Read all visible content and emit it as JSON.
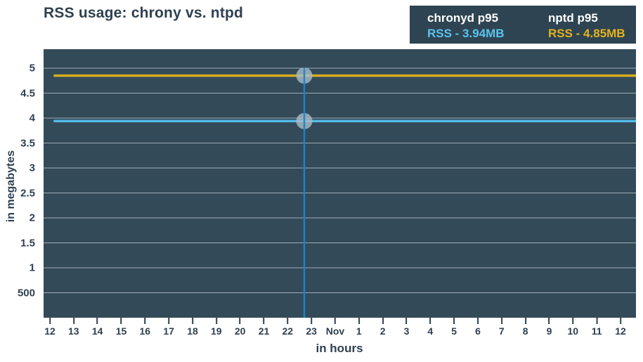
{
  "page": {
    "background": "#ffffff"
  },
  "header": {
    "title": "RSS usage: chrony vs. ntpd"
  },
  "legend": {
    "background": "#2e4452",
    "entries": [
      {
        "name": "chronyd p95",
        "value": "RSS - 3.94MB",
        "color": "#5bc3ec"
      },
      {
        "name": "nptd p95",
        "value": "RSS - 4.85MB",
        "color": "#e3b31c"
      }
    ]
  },
  "chart_data": {
    "type": "line",
    "title": "RSS usage: chrony vs. ntpd",
    "xlabel": "in hours",
    "ylabel": "in megabytes",
    "x_ticks": [
      "12",
      "13",
      "14",
      "15",
      "16",
      "17",
      "18",
      "19",
      "20",
      "21",
      "22",
      "23",
      "Nov",
      "1",
      "2",
      "3",
      "4",
      "5",
      "6",
      "7",
      "8",
      "9",
      "10",
      "11",
      "12"
    ],
    "y_ticks": [
      {
        "label": "500",
        "value": 0.5
      },
      {
        "label": "1",
        "value": 1
      },
      {
        "label": "1.5",
        "value": 1.5
      },
      {
        "label": "2",
        "value": 2
      },
      {
        "label": "2.5",
        "value": 2.5
      },
      {
        "label": "3",
        "value": 3
      },
      {
        "label": "3.5",
        "value": 3.5
      },
      {
        "label": "4",
        "value": 4
      },
      {
        "label": "4.5",
        "value": 4.5
      },
      {
        "label": "5",
        "value": 5
      }
    ],
    "ylim": [
      0,
      5.38
    ],
    "grid": true,
    "grid_color": "#a9b7c0",
    "plot_background": "#334a59",
    "series": [
      {
        "name": "chronyd p95",
        "value_mb": 3.94,
        "color": "#54b9e6",
        "shape": "constant-horizontal-line"
      },
      {
        "name": "nptd p95",
        "value_mb": 4.85,
        "color": "#d6ae1d",
        "shape": "constant-horizontal-line"
      }
    ],
    "series_x_start_index": 0.2,
    "series_x_end_index": 24.65,
    "crosshair": {
      "x_tick_index": 10.7,
      "near_label": "23",
      "color": "#1f86c6",
      "marker_color": "#a9bcc8",
      "marker_radius": 11.5
    }
  }
}
